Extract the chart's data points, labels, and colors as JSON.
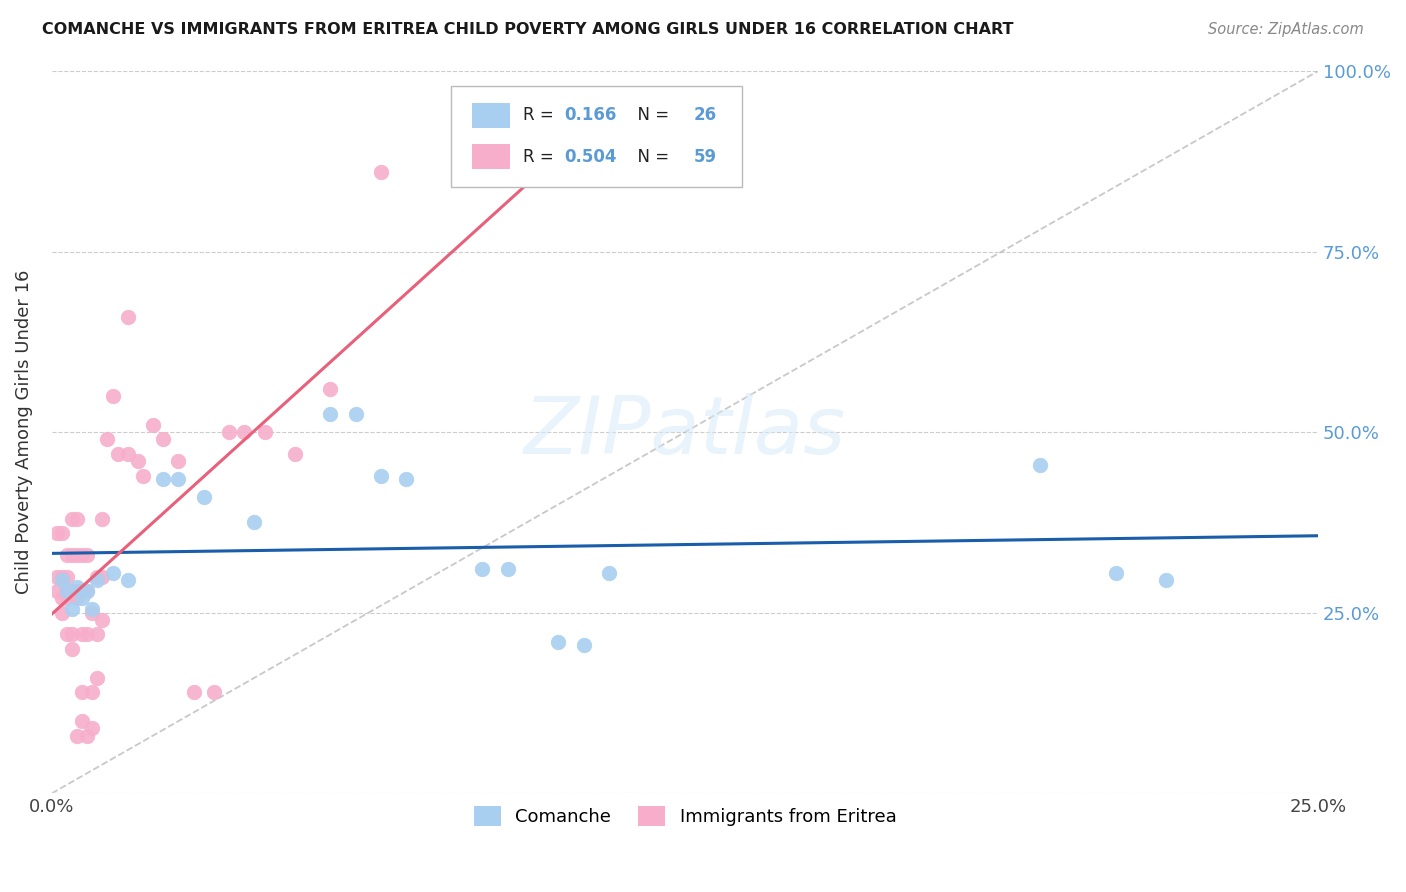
{
  "title": "COMANCHE VS IMMIGRANTS FROM ERITREA CHILD POVERTY AMONG GIRLS UNDER 16 CORRELATION CHART",
  "source": "Source: ZipAtlas.com",
  "ylabel": "Child Poverty Among Girls Under 16",
  "xlim": [
    0.0,
    0.25
  ],
  "ylim": [
    0.0,
    1.0
  ],
  "xticks": [
    0.0,
    0.05,
    0.1,
    0.15,
    0.2,
    0.25
  ],
  "yticks": [
    0.0,
    0.25,
    0.5,
    0.75,
    1.0
  ],
  "xticklabels": [
    "0.0%",
    "",
    "",
    "",
    "",
    "25.0%"
  ],
  "yticklabels_right": [
    "",
    "25.0%",
    "50.0%",
    "75.0%",
    "100.0%"
  ],
  "comanche_R": "0.166",
  "comanche_N": "26",
  "eritrea_R": "0.504",
  "eritrea_N": "59",
  "comanche_color": "#A8CFF0",
  "eritrea_color": "#F7AECA",
  "comanche_line_color": "#1A5DAB",
  "eritrea_line_color": "#E8607A",
  "diagonal_color": "#BBBBBB",
  "background_color": "#FFFFFF",
  "grid_color": "#CCCCCC",
  "comanche_x": [
    0.002,
    0.003,
    0.004,
    0.005,
    0.006,
    0.007,
    0.008,
    0.009,
    0.012,
    0.015,
    0.022,
    0.025,
    0.03,
    0.04,
    0.055,
    0.06,
    0.065,
    0.07,
    0.085,
    0.09,
    0.1,
    0.105,
    0.11,
    0.195,
    0.21,
    0.22
  ],
  "comanche_y": [
    0.295,
    0.28,
    0.255,
    0.285,
    0.27,
    0.28,
    0.255,
    0.295,
    0.305,
    0.295,
    0.435,
    0.435,
    0.41,
    0.375,
    0.525,
    0.525,
    0.44,
    0.435,
    0.31,
    0.31,
    0.21,
    0.205,
    0.305,
    0.455,
    0.305,
    0.295
  ],
  "eritrea_x": [
    0.001,
    0.001,
    0.001,
    0.002,
    0.002,
    0.002,
    0.002,
    0.003,
    0.003,
    0.003,
    0.003,
    0.003,
    0.004,
    0.004,
    0.004,
    0.004,
    0.004,
    0.005,
    0.005,
    0.005,
    0.005,
    0.005,
    0.006,
    0.006,
    0.006,
    0.006,
    0.006,
    0.007,
    0.007,
    0.007,
    0.007,
    0.008,
    0.008,
    0.008,
    0.009,
    0.009,
    0.009,
    0.01,
    0.01,
    0.01,
    0.011,
    0.012,
    0.013,
    0.015,
    0.015,
    0.017,
    0.018,
    0.02,
    0.022,
    0.025,
    0.028,
    0.032,
    0.035,
    0.038,
    0.042,
    0.048,
    0.055,
    0.065,
    0.1
  ],
  "eritrea_y": [
    0.28,
    0.3,
    0.36,
    0.27,
    0.3,
    0.36,
    0.25,
    0.3,
    0.33,
    0.28,
    0.27,
    0.22,
    0.33,
    0.38,
    0.28,
    0.22,
    0.2,
    0.33,
    0.38,
    0.28,
    0.27,
    0.08,
    0.33,
    0.28,
    0.22,
    0.14,
    0.1,
    0.33,
    0.28,
    0.22,
    0.08,
    0.25,
    0.14,
    0.09,
    0.3,
    0.22,
    0.16,
    0.38,
    0.3,
    0.24,
    0.49,
    0.55,
    0.47,
    0.47,
    0.66,
    0.46,
    0.44,
    0.51,
    0.49,
    0.46,
    0.14,
    0.14,
    0.5,
    0.5,
    0.5,
    0.47,
    0.56,
    0.86,
    0.85
  ],
  "comanche_line_x": [
    0.0,
    0.25
  ],
  "eritrea_line_x": [
    0.0,
    0.105
  ],
  "comanche_intercept": 0.295,
  "comanche_slope": 0.38,
  "eritrea_intercept": 0.27,
  "eritrea_slope": 5.0
}
